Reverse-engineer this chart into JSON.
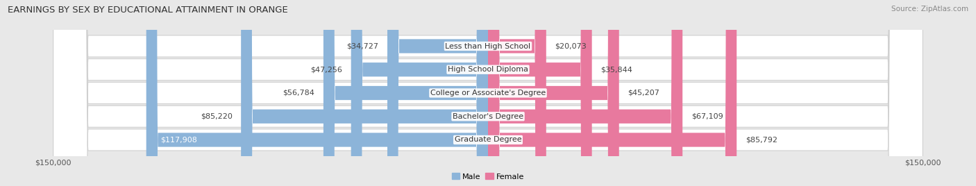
{
  "title": "EARNINGS BY SEX BY EDUCATIONAL ATTAINMENT IN ORANGE",
  "source": "Source: ZipAtlas.com",
  "categories": [
    "Less than High School",
    "High School Diploma",
    "College or Associate's Degree",
    "Bachelor's Degree",
    "Graduate Degree"
  ],
  "male_values": [
    34727,
    47256,
    56784,
    85220,
    117908
  ],
  "female_values": [
    20073,
    35844,
    45207,
    67109,
    85792
  ],
  "male_color": "#8CB4D9",
  "female_color": "#E8799E",
  "male_label": "Male",
  "female_label": "Female",
  "max_value": 150000,
  "bg_color": "#e8e8e8",
  "row_bg_color": "#f0f0f0",
  "title_fontsize": 9.5,
  "label_fontsize": 8.0,
  "tick_fontsize": 8.0,
  "value_fontsize": 8.0
}
